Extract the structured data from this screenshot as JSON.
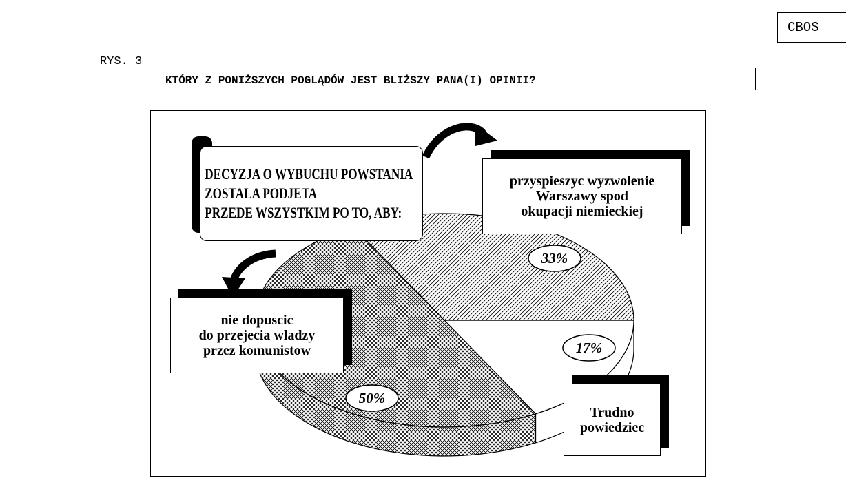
{
  "header": {
    "org": "CBOS",
    "figure": "RYS. 3"
  },
  "chart_data": {
    "type": "pie",
    "title": "KTÓRY Z PONIŻSZYCH POGLĄDÓW JEST BLIŻSZY PANA(I) OPINII?",
    "annotation": "DECYZJA O WYBUCHU POWSTANIA\nZOSTALA PODJETA\nPRZEDE WSZYSTKIM PO TO, ABY:",
    "categories": [
      "Trudno\npowiedziec",
      "nie dopuscic\ndo przejecia wladzy\nprzez komunistow",
      "przyspieszyc wyzwolenie\nWarszawy spod\nokupacji niemieckiej"
    ],
    "values": [
      17,
      50,
      33
    ],
    "value_labels": [
      "17%",
      "50%",
      "33%"
    ],
    "patterns": [
      "none",
      "crosshatch",
      "hatch"
    ]
  }
}
